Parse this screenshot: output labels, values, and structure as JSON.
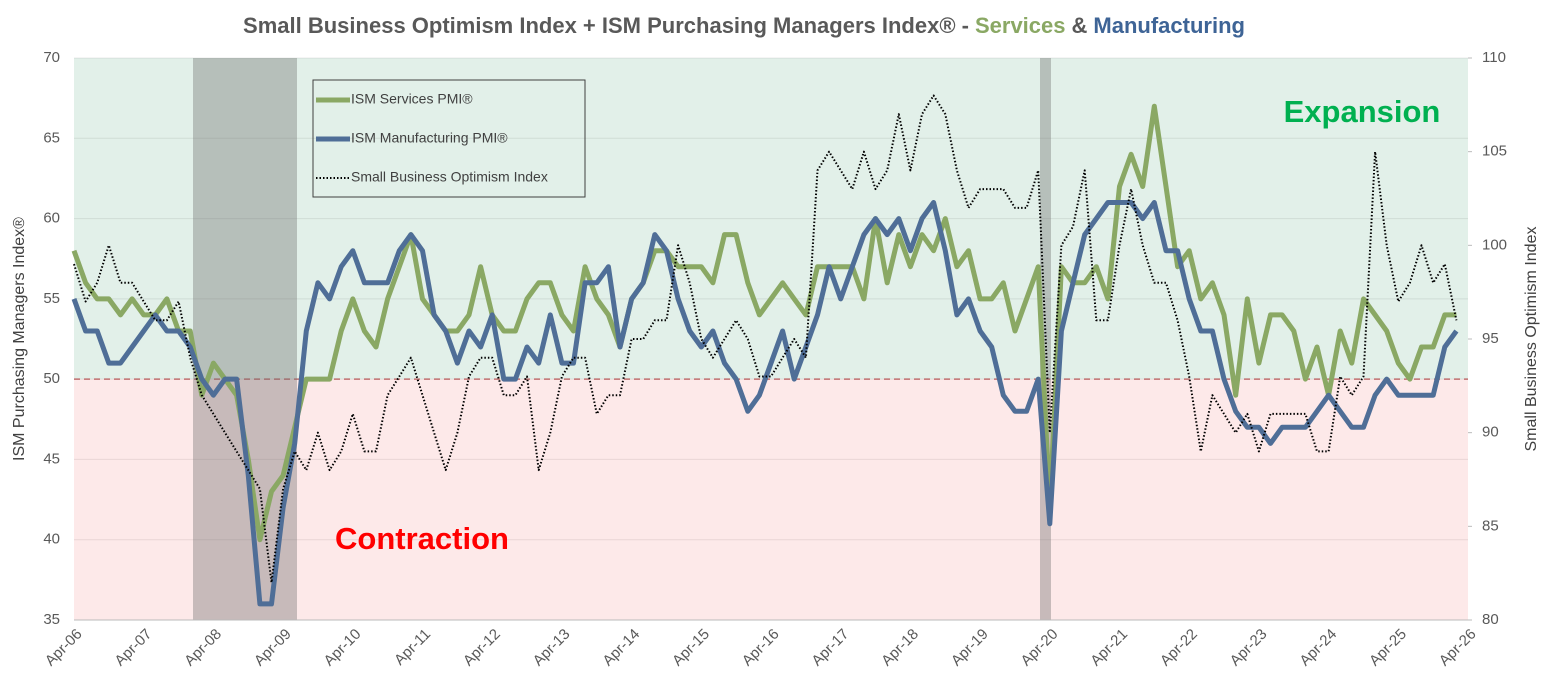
{
  "chart_data": {
    "type": "line",
    "title": {
      "prefix": "Small Business Optimism Index + ISM Purchasing Managers Index® -",
      "services": "Services",
      "joiner": "&",
      "manufacturing": "Manufacturing"
    },
    "y_label": "ISM Purchasing Managers Index®",
    "y2_label": "Small Business Optimism Index",
    "annotations": {
      "expansion": "Expansion",
      "contraction": "Contraction"
    },
    "categories": [
      "Apr-06",
      null,
      null,
      null,
      null,
      null,
      "Apr-07",
      null,
      null,
      null,
      null,
      null,
      "Apr-08",
      null,
      null,
      null,
      null,
      null,
      "Apr-09",
      null,
      null,
      null,
      null,
      null,
      "Apr-10",
      null,
      null,
      null,
      null,
      null,
      "Apr-11",
      null,
      null,
      null,
      null,
      null,
      "Apr-12",
      null,
      null,
      null,
      null,
      null,
      "Apr-13",
      null,
      null,
      null,
      null,
      null,
      "Apr-14",
      null,
      null,
      null,
      null,
      null,
      "Apr-15",
      null,
      null,
      null,
      null,
      null,
      "Apr-16",
      null,
      null,
      null,
      null,
      null,
      "Apr-17",
      null,
      null,
      null,
      null,
      null,
      "Apr-18",
      null,
      null,
      null,
      null,
      null,
      "Apr-19",
      null,
      null,
      null,
      null,
      null,
      "Apr-20",
      null,
      null,
      null,
      null,
      null,
      "Apr-21",
      null,
      null,
      null,
      null,
      null,
      "Apr-22",
      null,
      null,
      null,
      null,
      null,
      "Apr-23",
      null,
      null,
      null,
      null,
      null,
      "Apr-24",
      null,
      null,
      null,
      null,
      null,
      "Apr-25",
      null,
      null,
      null,
      null,
      null,
      "Apr-26"
    ],
    "series": [
      {
        "name": "ISM Services PMI®",
        "color": "#8aa864",
        "width": 5,
        "style": "solid",
        "values": [
          58,
          56,
          55,
          55,
          54,
          55,
          54,
          54,
          55,
          53,
          53,
          49,
          51,
          50,
          49,
          45,
          40,
          43,
          44,
          47,
          50,
          50,
          50,
          53,
          55,
          53,
          52,
          55,
          57,
          59,
          55,
          54,
          53,
          53,
          54,
          57,
          54,
          53,
          53,
          55,
          56,
          56,
          54,
          53,
          57,
          55,
          54,
          52,
          55,
          56,
          58,
          58,
          57,
          57,
          57,
          56,
          59,
          59,
          56,
          54,
          55,
          56,
          55,
          54,
          57,
          57,
          57,
          57,
          55,
          60,
          56,
          59,
          57,
          59,
          58,
          60,
          57,
          58,
          55,
          55,
          56,
          53,
          55,
          57,
          42,
          57,
          56,
          56,
          57,
          55,
          62,
          64,
          62,
          67,
          62,
          57,
          58,
          55,
          56,
          54,
          49,
          55,
          51,
          54,
          54,
          53,
          50,
          52,
          49,
          53,
          51,
          55,
          54,
          53,
          51,
          50,
          52,
          52,
          54,
          54,
          null
        ]
      },
      {
        "name": "ISM Manufacturing PMI®",
        "color": "#4f6e97",
        "width": 5,
        "style": "solid",
        "values": [
          55,
          53,
          53,
          51,
          51,
          52,
          53,
          54,
          53,
          53,
          52,
          50,
          49,
          50,
          50,
          44,
          36,
          36,
          42,
          46,
          53,
          56,
          55,
          57,
          58,
          56,
          56,
          56,
          58,
          59,
          58,
          54,
          53,
          51,
          53,
          52,
          54,
          50,
          50,
          52,
          51,
          54,
          51,
          51,
          56,
          56,
          57,
          52,
          55,
          56,
          59,
          58,
          55,
          53,
          52,
          53,
          51,
          50,
          48,
          49,
          51,
          53,
          50,
          52,
          54,
          57,
          55,
          57,
          59,
          60,
          59,
          60,
          58,
          60,
          61,
          58,
          54,
          55,
          53,
          52,
          49,
          48,
          48,
          50,
          41,
          53,
          56,
          59,
          60,
          61,
          61,
          61,
          60,
          61,
          58,
          58,
          55,
          53,
          53,
          50,
          48,
          47,
          47,
          46,
          47,
          47,
          47,
          48,
          49,
          48,
          47,
          47,
          49,
          50,
          49,
          49,
          49,
          49,
          52,
          53,
          null
        ]
      },
      {
        "name": "Small Business Optimism Index",
        "color": "#000000",
        "width": 2,
        "style": "dotted",
        "axis": "y2",
        "values": [
          99,
          97,
          98,
          100,
          98,
          98,
          97,
          96,
          96,
          97,
          94,
          92,
          91,
          90,
          89,
          88,
          87,
          82,
          87,
          89,
          88,
          90,
          88,
          89,
          91,
          89,
          89,
          92,
          93,
          94,
          92,
          90,
          88,
          90,
          93,
          94,
          94,
          92,
          92,
          93,
          88,
          90,
          93,
          94,
          94,
          91,
          92,
          92,
          95,
          95,
          96,
          96,
          100,
          98,
          95,
          94,
          95,
          96,
          95,
          93,
          93,
          94,
          95,
          94,
          104,
          105,
          104,
          103,
          105,
          103,
          104,
          107,
          104,
          107,
          108,
          107,
          104,
          102,
          103,
          103,
          103,
          102,
          102,
          104,
          90,
          100,
          101,
          104,
          96,
          96,
          100,
          103,
          100,
          98,
          98,
          96,
          93,
          89,
          92,
          91,
          90,
          91,
          89,
          91,
          91,
          91,
          91,
          89,
          89,
          93,
          92,
          93,
          105,
          100,
          97,
          98,
          100,
          98,
          99,
          96,
          null
        ]
      }
    ],
    "ylim": [
      35,
      70
    ],
    "yticks": [
      35,
      40,
      45,
      50,
      55,
      60,
      65,
      70
    ],
    "y2lim": [
      80,
      110
    ],
    "y2ticks": [
      80,
      85,
      90,
      95,
      100,
      105,
      110
    ],
    "grid": true
  }
}
